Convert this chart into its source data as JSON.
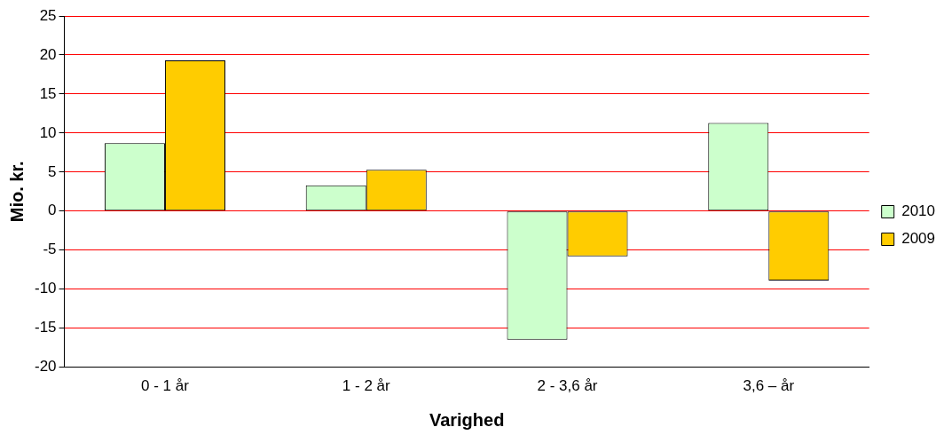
{
  "chart_data": {
    "type": "bar",
    "xlabel": "Varighed",
    "ylabel": "Mio. kr.",
    "categories": [
      "0 - 1 år",
      "1 - 2 år",
      "2 - 3,6 år",
      "3,6 – år"
    ],
    "series": [
      {
        "name": "2010",
        "color": "#ccffcc",
        "values": [
          8.7,
          3.3,
          -16.5,
          11.3
        ]
      },
      {
        "name": "2009",
        "color": "#ffcc00",
        "values": [
          19.3,
          5.3,
          -5.8,
          -8.9
        ]
      }
    ],
    "ylim": [
      -20,
      25
    ],
    "yticks": [
      -20,
      -15,
      -10,
      -5,
      0,
      5,
      10,
      15,
      20,
      25
    ],
    "grid": "y",
    "legend": "right"
  }
}
